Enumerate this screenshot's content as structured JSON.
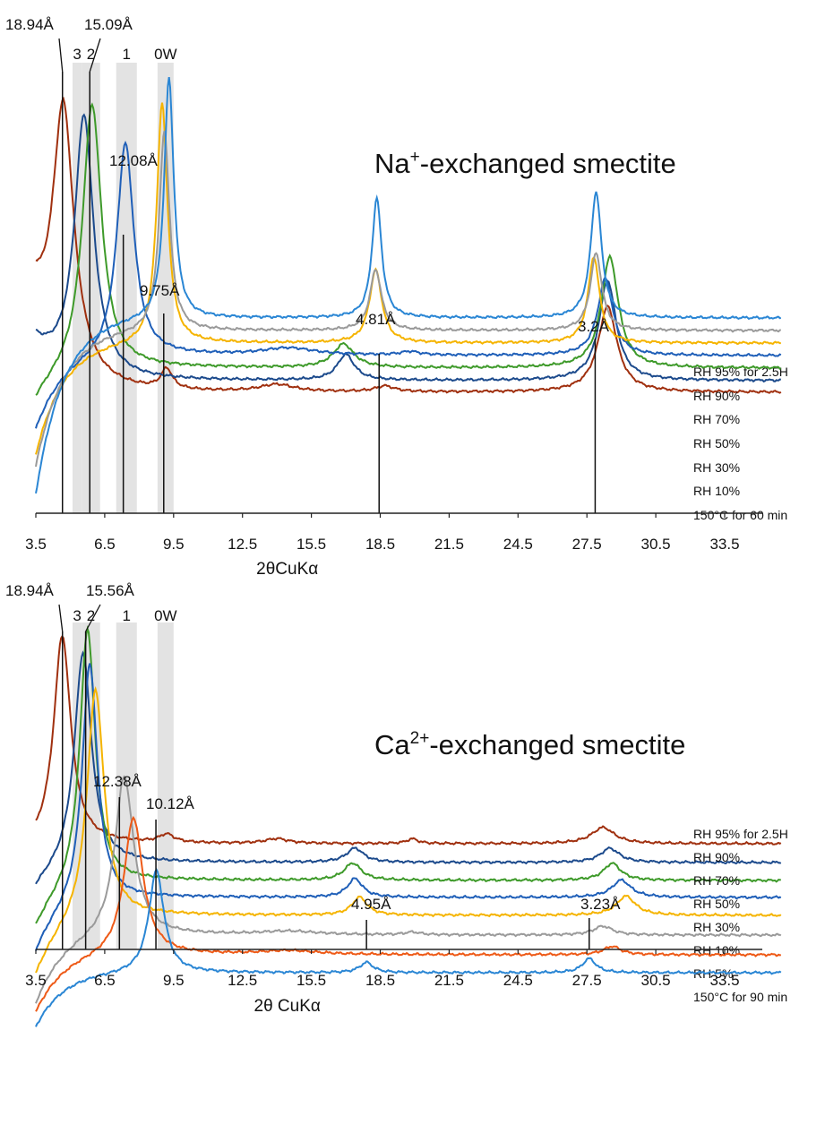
{
  "colors": {
    "rh95": "#a0300f",
    "rh90": "#1c4a8c",
    "rh70": "#3e9a2a",
    "rh50": "#1f5fb8",
    "rh30": "#f5b400",
    "rh10": "#9a9a9a",
    "rh5": "#ee5a17",
    "dry": "#2a86d4",
    "band": "#e3e3e3",
    "axis": "#222222",
    "marker": "#111111"
  },
  "chart_data": [
    {
      "type": "line",
      "title": "Na⁺-exchanged smectite",
      "title_parts": {
        "pre": "Na",
        "sup": "+",
        "post": "-exchanged smectite"
      },
      "xlabel": "2θCuKα",
      "ylabel": "",
      "xlim": [
        3.5,
        36
      ],
      "xticks": [
        "3.5",
        "6.5",
        "9.5",
        "12.5",
        "15.5",
        "18.5",
        "21.5",
        "24.5",
        "27.5",
        "30.5",
        "33.5"
      ],
      "xtick_values": [
        3.5,
        6.5,
        9.5,
        12.5,
        15.5,
        18.5,
        21.5,
        24.5,
        27.5,
        30.5,
        33.5
      ],
      "hydration_bands": [
        {
          "label": "3",
          "x": [
            5.1,
            5.5
          ]
        },
        {
          "label": "2",
          "x": [
            5.5,
            6.3
          ]
        },
        {
          "label": "1",
          "x": [
            7.0,
            7.9
          ]
        },
        {
          "label": "0W",
          "x": [
            8.8,
            9.5
          ]
        }
      ],
      "d_spacing_markers": [
        {
          "label": "18.94Å",
          "x": 4.66
        },
        {
          "label": "15.09Å",
          "x": 5.85
        },
        {
          "label": "12.08Å",
          "x": 7.31
        },
        {
          "label": "9.75Å",
          "x": 9.07
        },
        {
          "label": "4.81Å",
          "x": 18.45
        },
        {
          "label": "3.2Å",
          "x": 27.86
        }
      ],
      "series": [
        {
          "name": "RH 95% for 2.5H",
          "color_key": "rh95",
          "peaks": [
            [
              4.7,
              1.0,
              0.55
            ],
            [
              9.2,
              0.14,
              0.3
            ],
            [
              14.0,
              0.05,
              0.9
            ],
            [
              18.7,
              0.04,
              0.5
            ],
            [
              28.4,
              0.6,
              0.5
            ]
          ]
        },
        {
          "name": "RH 90%",
          "color_key": "rh90",
          "peaks": [
            [
              5.6,
              1.0,
              0.5
            ],
            [
              17.0,
              0.18,
              0.45
            ],
            [
              28.4,
              0.7,
              0.45
            ]
          ]
        },
        {
          "name": "RH 70%",
          "color_key": "rh70",
          "peaks": [
            [
              5.95,
              1.0,
              0.5
            ],
            [
              16.9,
              0.16,
              0.55
            ],
            [
              28.5,
              0.75,
              0.45
            ]
          ]
        },
        {
          "name": "RH 50%",
          "color_key": "rh50",
          "peaks": [
            [
              7.4,
              1.0,
              0.45
            ],
            [
              14.5,
              0.06,
              1.4
            ],
            [
              19.8,
              0.03,
              0.5
            ],
            [
              28.3,
              0.65,
              0.4
            ]
          ]
        },
        {
          "name": "RH 30%",
          "color_key": "rh30",
          "peaks": [
            [
              9.0,
              1.0,
              0.28
            ],
            [
              18.3,
              0.55,
              0.32
            ],
            [
              27.8,
              0.65,
              0.3
            ]
          ]
        },
        {
          "name": "RH 10%",
          "color_key": "rh10",
          "peaks": [
            [
              9.1,
              1.0,
              0.27
            ],
            [
              18.3,
              0.55,
              0.3
            ],
            [
              27.9,
              0.7,
              0.3
            ]
          ]
        },
        {
          "name": "150°C for 60 min",
          "color_key": "dry",
          "peaks": [
            [
              9.3,
              1.0,
              0.25
            ],
            [
              18.35,
              0.9,
              0.25
            ],
            [
              27.9,
              0.95,
              0.28
            ]
          ]
        }
      ]
    },
    {
      "type": "line",
      "title": "Ca²⁺-exchanged smectite",
      "title_parts": {
        "pre": "Ca",
        "sup": "2+",
        "post": "-exchanged smectite"
      },
      "xlabel": "2θ CuKα",
      "ylabel": "",
      "xlim": [
        3.5,
        36
      ],
      "xticks": [
        "3.5",
        "6.5",
        "9.5",
        "12.5",
        "15.5",
        "18.5",
        "21.5",
        "24.5",
        "27.5",
        "30.5",
        "33.5"
      ],
      "xtick_values": [
        3.5,
        6.5,
        9.5,
        12.5,
        15.5,
        18.5,
        21.5,
        24.5,
        27.5,
        30.5,
        33.5
      ],
      "hydration_bands": [
        {
          "label": "3",
          "x": [
            5.1,
            5.5
          ]
        },
        {
          "label": "2",
          "x": [
            5.5,
            6.3
          ]
        },
        {
          "label": "1",
          "x": [
            7.0,
            7.9
          ]
        },
        {
          "label": "0W",
          "x": [
            8.8,
            9.5
          ]
        }
      ],
      "d_spacing_markers": [
        {
          "label": "18.94Å",
          "x": 4.66
        },
        {
          "label": "15.56Å",
          "x": 5.67
        },
        {
          "label": "12.38Å",
          "x": 7.14
        },
        {
          "label": "10.12Å",
          "x": 8.73
        },
        {
          "label": "4.95Å",
          "x": 17.9
        },
        {
          "label": "3.23Å",
          "x": 27.6
        }
      ],
      "series": [
        {
          "name": "RH 95% for 2.5H",
          "color_key": "rh95",
          "peaks": [
            [
              4.65,
              1.0,
              0.45
            ],
            [
              9.2,
              0.07,
              0.4
            ],
            [
              14.0,
              0.04,
              0.6
            ],
            [
              19.9,
              0.04,
              0.3
            ],
            [
              28.2,
              0.14,
              0.6
            ]
          ]
        },
        {
          "name": "RH 90%",
          "color_key": "rh90",
          "peaks": [
            [
              5.55,
              1.0,
              0.45
            ],
            [
              17.4,
              0.12,
              0.45
            ],
            [
              28.5,
              0.12,
              0.5
            ]
          ]
        },
        {
          "name": "RH 70%",
          "color_key": "rh70",
          "peaks": [
            [
              5.75,
              1.0,
              0.4
            ],
            [
              17.3,
              0.12,
              0.45
            ],
            [
              28.6,
              0.12,
              0.45
            ]
          ]
        },
        {
          "name": "RH 50%",
          "color_key": "rh50",
          "peaks": [
            [
              5.85,
              1.0,
              0.4
            ],
            [
              17.4,
              0.14,
              0.4
            ],
            [
              29.0,
              0.13,
              0.5
            ]
          ]
        },
        {
          "name": "RH 30%",
          "color_key": "rh30",
          "peaks": [
            [
              6.1,
              1.0,
              0.45
            ],
            [
              17.6,
              0.14,
              0.4
            ],
            [
              29.2,
              0.15,
              0.5
            ]
          ]
        },
        {
          "name": "RH 10%",
          "color_key": "rh10",
          "peaks": [
            [
              7.35,
              1.0,
              0.5
            ],
            [
              14.5,
              0.04,
              1.5
            ],
            [
              19.9,
              0.03,
              0.4
            ],
            [
              28.2,
              0.1,
              0.5
            ]
          ]
        },
        {
          "name": "RH 5%",
          "color_key": "rh5",
          "peaks": [
            [
              7.75,
              1.0,
              0.5
            ],
            [
              14.5,
              0.05,
              1.5
            ],
            [
              28.6,
              0.11,
              0.45
            ]
          ]
        },
        {
          "name": "150°C for 90 min",
          "color_key": "dry",
          "peaks": [
            [
              8.75,
              1.0,
              0.4
            ],
            [
              17.9,
              0.18,
              0.35
            ],
            [
              27.6,
              0.25,
              0.35
            ]
          ]
        }
      ]
    }
  ]
}
